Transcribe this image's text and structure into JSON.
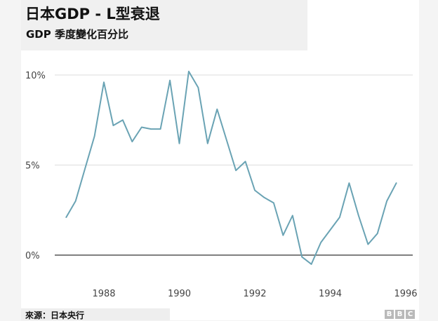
{
  "header": {
    "title": "日本GDP - L型衰退",
    "subtitle": "GDP 季度變化百分比"
  },
  "footer": {
    "source": "來源：日本央行",
    "logo": [
      "B",
      "B",
      "C"
    ]
  },
  "chart_data": {
    "type": "line",
    "title": "日本GDP - L型衰退",
    "subtitle": "GDP 季度變化百分比",
    "xlabel": "",
    "ylabel": "",
    "xlim": [
      1986.3,
      1996.3
    ],
    "ylim": [
      -1,
      11
    ],
    "x_ticks": [
      1988,
      1990,
      1992,
      1994,
      1996
    ],
    "x_tick_labels": [
      "1988",
      "1990",
      "1992",
      "1994",
      "1996"
    ],
    "y_ticks": [
      0,
      5,
      10
    ],
    "y_tick_labels": [
      "0%",
      "5%",
      "10%"
    ],
    "grid": true,
    "series": [
      {
        "color": "#6aa3b4",
        "x": [
          1987.0,
          1987.25,
          1987.5,
          1987.75,
          1988.0,
          1988.25,
          1988.5,
          1988.75,
          1989.0,
          1989.25,
          1989.5,
          1989.75,
          1990.0,
          1990.25,
          1990.5,
          1990.75,
          1991.0,
          1991.25,
          1991.5,
          1991.75,
          1992.0,
          1992.25,
          1992.5,
          1992.75,
          1993.0,
          1993.25,
          1993.5,
          1993.75,
          1994.0,
          1994.25,
          1994.5,
          1994.75,
          1995.0,
          1995.25,
          1995.5,
          1995.75
        ],
        "values": [
          2.1,
          3.0,
          4.8,
          6.6,
          9.6,
          7.2,
          7.5,
          6.3,
          7.1,
          7.0,
          7.0,
          9.7,
          6.2,
          10.2,
          9.3,
          6.2,
          8.1,
          6.4,
          4.7,
          5.2,
          3.6,
          3.2,
          2.9,
          1.1,
          2.2,
          -0.1,
          -0.5,
          0.7,
          1.4,
          2.1,
          4.0,
          2.2,
          0.6,
          1.2,
          3.0,
          4.0
        ]
      }
    ]
  }
}
